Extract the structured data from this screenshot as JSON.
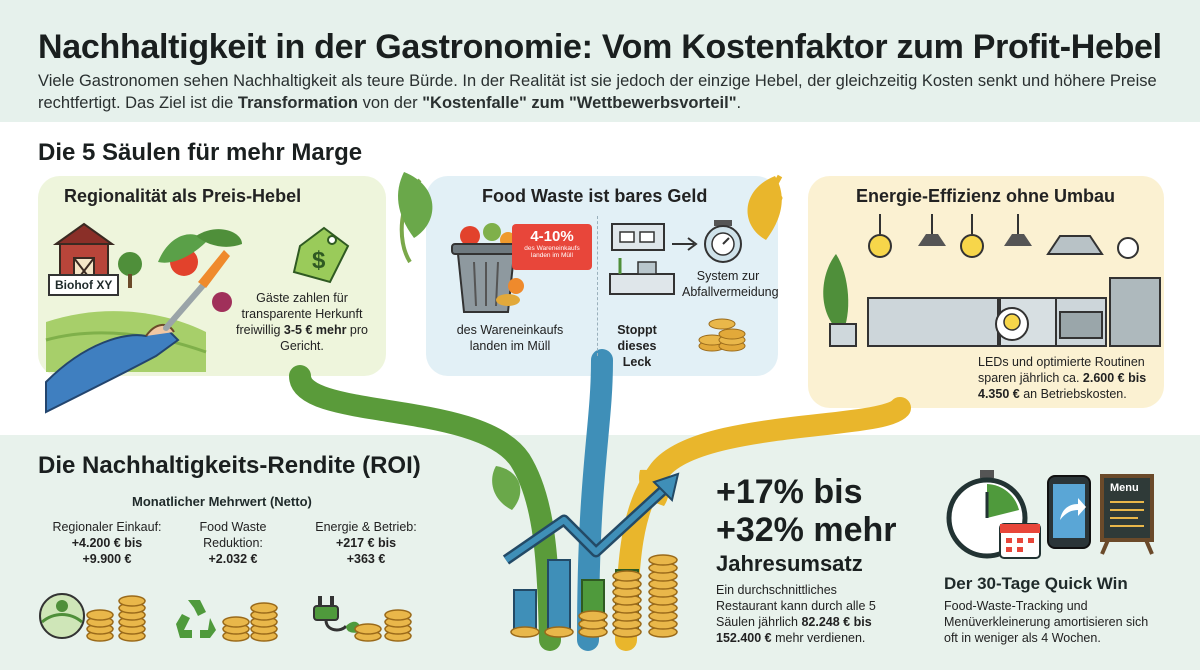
{
  "header": {
    "title": "Nachhaltigkeit in der Gastronomie: Vom Kostenfaktor zum Profit-Hebel",
    "intro_part1": "Viele Gastronomen sehen Nachhaltigkeit als teure Bürde. In der Realität ist sie jedoch der einzige Hebel, der gleichzeitig Kosten senkt und höhere Preise rechtfertigt. Das Ziel ist die ",
    "intro_bold1": "Transformation",
    "intro_part2": " von der ",
    "intro_bold2": "\"Kostenfalle\" zum \"Wettbewerbsvorteil\"",
    "intro_part3": "."
  },
  "pillars": {
    "heading": "Die 5 Säulen für mehr Marge",
    "regional": {
      "title": "Regionalität als Preis-Hebel",
      "farm_sign": "Biohof XY",
      "text_part1": "Gäste zahlen für transparente Herkunft freiwillig ",
      "text_bold": "3-5 € mehr",
      "text_part2": " pro Gericht."
    },
    "food_waste": {
      "title": "Food Waste ist bares Geld",
      "badge_percent": "4-10%",
      "badge_small": "des Wareneinkaufs landen im Müll",
      "bin_caption": "des Wareneinkaufs landen im Müll",
      "system_label": "System zur Abfallvermeidung",
      "stop_label": "Stoppt dieses Leck"
    },
    "energy": {
      "title": "Energie-Effizienz ohne Umbau",
      "text_part1": "LEDs und optimierte Routinen sparen jährlich ca. ",
      "text_bold": "2.600 € bis 4.350 €",
      "text_part2": " an Betriebskosten."
    }
  },
  "roi": {
    "heading": "Die Nachhaltigkeits-Rendite (ROI)",
    "subheading": "Monatlicher Mehrwert (Netto)",
    "items": [
      {
        "label": "Regionaler Einkauf:",
        "value_line1": "+4.200 € bis",
        "value_line2": "+9.900 €"
      },
      {
        "label": "Food Waste Reduktion:",
        "value_line1": "+2.032 €",
        "value_line2": ""
      },
      {
        "label": "Energie & Betrieb:",
        "value_line1": "+217 € bis",
        "value_line2": "+363 €"
      }
    ]
  },
  "revenue": {
    "big_line1": "+17% bis",
    "big_line2": "+32% mehr",
    "subtitle": "Jahresumsatz",
    "text_part1": "Ein durchschnittliches Restaurant kann durch alle 5 Säulen jährlich ",
    "text_bold": "82.248 € bis 152.400 €",
    "text_part2": " mehr verdienen."
  },
  "quickwin": {
    "menu_label": "Menu",
    "title": "Der 30-Tage Quick Win",
    "text": "Food-Waste-Tracking und Menüverkleinerung amortisieren sich oft in weniger als 4 Wochen."
  },
  "colors": {
    "green": "#4f9a3c",
    "blue": "#3f8fb8",
    "yellow": "#e9b62c",
    "coin": "#e2a93a"
  }
}
